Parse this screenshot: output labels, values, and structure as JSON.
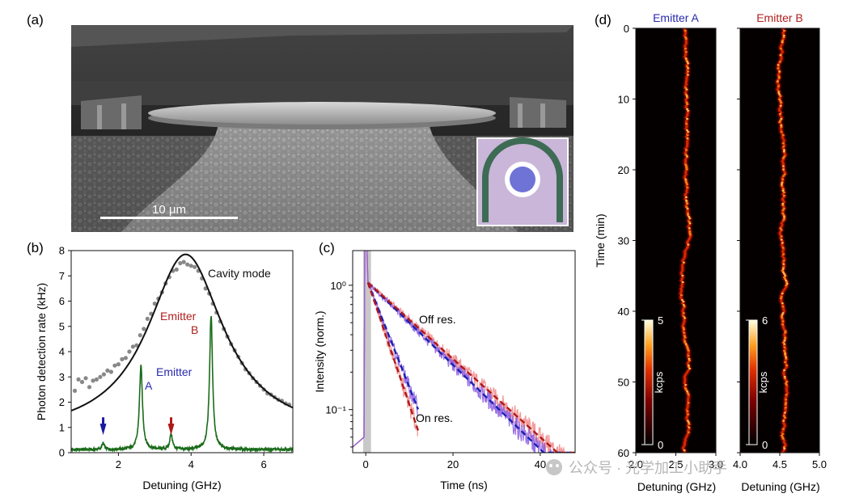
{
  "figure": {
    "panel_labels": [
      "(a)",
      "(b)",
      "(c)",
      "(d)"
    ],
    "watermark": "公众号 · 光学加工小助手"
  },
  "panel_a": {
    "scale_bar_label": "10 μm"
  },
  "chart_data": [
    {
      "panel": "(b)",
      "type": "line",
      "xlabel": "Detuning (GHz)",
      "ylabel": "Photon detection rate (kHz)",
      "xlim": [
        0.7,
        6.8
      ],
      "ylim": [
        0,
        8
      ],
      "xticks": [
        2,
        4,
        6
      ],
      "yticks": [
        0,
        1,
        2,
        3,
        4,
        5,
        6,
        7,
        8
      ],
      "annotations": {
        "cavity": "Cavity mode",
        "emitter_b_1": "Emitter",
        "emitter_b_2": "B",
        "emitter_a_1": "Emitter",
        "emitter_a_2": "A"
      },
      "cavity_fit": {
        "center": 3.85,
        "amplitude": 7.2,
        "fwhm": 2.55,
        "offset": 0.65
      },
      "cavity_scatter": [
        [
          0.8,
          2.45
        ],
        [
          0.9,
          2.9
        ],
        [
          1.0,
          2.8
        ],
        [
          1.1,
          2.95
        ],
        [
          1.2,
          2.6
        ],
        [
          1.3,
          2.85
        ],
        [
          1.4,
          2.9
        ],
        [
          1.5,
          3.0
        ],
        [
          1.6,
          3.1
        ],
        [
          1.7,
          3.25
        ],
        [
          1.8,
          3.2
        ],
        [
          1.9,
          3.45
        ],
        [
          2.0,
          3.5
        ],
        [
          2.1,
          3.7
        ],
        [
          2.2,
          3.75
        ],
        [
          2.3,
          4.0
        ],
        [
          2.4,
          4.2
        ],
        [
          2.5,
          4.25
        ],
        [
          2.6,
          4.65
        ],
        [
          2.7,
          4.9
        ],
        [
          2.8,
          5.3
        ],
        [
          2.9,
          5.5
        ],
        [
          3.0,
          5.9
        ],
        [
          3.1,
          6.1
        ],
        [
          3.2,
          6.35
        ],
        [
          3.3,
          6.7
        ],
        [
          3.4,
          6.95
        ],
        [
          3.5,
          7.2
        ],
        [
          3.6,
          7.25
        ],
        [
          3.7,
          7.5
        ],
        [
          3.8,
          7.55
        ],
        [
          3.9,
          7.45
        ],
        [
          4.0,
          7.4
        ],
        [
          4.1,
          7.35
        ],
        [
          4.2,
          7.2
        ],
        [
          4.3,
          6.9
        ],
        [
          4.4,
          6.5
        ],
        [
          4.5,
          6.3
        ],
        [
          4.6,
          5.9
        ],
        [
          4.7,
          5.55
        ],
        [
          4.8,
          5.2
        ],
        [
          4.9,
          4.9
        ],
        [
          5.0,
          4.6
        ],
        [
          5.1,
          4.3
        ],
        [
          5.2,
          4.05
        ],
        [
          5.3,
          3.8
        ],
        [
          5.4,
          3.55
        ],
        [
          5.5,
          3.3
        ],
        [
          5.6,
          3.15
        ],
        [
          5.7,
          2.95
        ],
        [
          5.8,
          2.8
        ],
        [
          5.9,
          2.65
        ],
        [
          6.0,
          2.5
        ],
        [
          6.1,
          2.35
        ],
        [
          6.2,
          2.3
        ],
        [
          6.3,
          2.2
        ],
        [
          6.4,
          2.1
        ],
        [
          6.5,
          2.05
        ],
        [
          6.6,
          1.95
        ],
        [
          6.7,
          1.9
        ]
      ],
      "emitter_spectrum": {
        "baseline": 0.12,
        "peaks": [
          {
            "center": 1.58,
            "height": 0.25,
            "width": 0.04
          },
          {
            "center": 2.62,
            "height": 3.3,
            "width": 0.05
          },
          {
            "center": 3.45,
            "height": 0.6,
            "width": 0.045
          },
          {
            "center": 4.55,
            "height": 5.3,
            "width": 0.05
          }
        ]
      },
      "arrows": [
        {
          "x": 1.58,
          "color": "#1a1aa0"
        },
        {
          "x": 3.45,
          "color": "#b01818"
        }
      ],
      "colors": {
        "scatter": "#888888",
        "fit": "#111111",
        "spectrum": "#1a6b1a",
        "emitter_a": "#2a2ab0",
        "emitter_b": "#b02020"
      }
    },
    {
      "panel": "(c)",
      "type": "line",
      "xlabel": "Time (ns)",
      "ylabel": "Intensity (norm.)",
      "yscale": "log",
      "xlim": [
        -3,
        48
      ],
      "ylim": [
        0.045,
        1.9
      ],
      "xticks": [
        0,
        20,
        40
      ],
      "ytick_labels": [
        "10⁰",
        "10⁻¹"
      ],
      "ytick_values": [
        1,
        0.1
      ],
      "annotations": {
        "off_res": "Off res.",
        "on_res": "On res."
      },
      "series": [
        {
          "label": "Off res.",
          "tau_purple": 12.8,
          "tau_red": 13.8,
          "t_end": 48
        },
        {
          "label": "On res.",
          "tau_purple": 4.9,
          "tau_red": 4.2,
          "t_end": 12
        }
      ],
      "colors": {
        "purple_data": "#8a5ae0",
        "red_data": "#f08888",
        "blue_fit": "#1a22b0",
        "red_fit": "#b01818",
        "grey_band": "#b0b0b0"
      }
    },
    {
      "panel": "(d)",
      "type": "heatmap",
      "ylabel": "Time (min)",
      "ylim": [
        60,
        0
      ],
      "yticks": [
        0,
        10,
        20,
        30,
        40,
        50,
        60
      ],
      "maps": [
        {
          "title": "Emitter A",
          "xlabel": "Detuning (GHz)",
          "xlim": [
            2.0,
            3.0
          ],
          "xtick_labels": [
            "2.0",
            "2.5",
            "3.0"
          ],
          "xtick_values": [
            2.0,
            2.5,
            3.0
          ],
          "colorbar_label": "kcps",
          "colorbar_range": [
            0,
            5
          ],
          "colorbar_ticks": [
            "0",
            "5"
          ],
          "line_center": 2.62,
          "title_color": "#2a2ab0"
        },
        {
          "title": "Emitter B",
          "xlabel": "Detuning (GHz)",
          "xlim": [
            4.0,
            5.0
          ],
          "xtick_labels": [
            "4.0",
            "4.5",
            "5.0"
          ],
          "xtick_values": [
            4.0,
            4.5,
            5.0
          ],
          "colorbar_label": "kcps",
          "colorbar_range": [
            0,
            6
          ],
          "colorbar_ticks": [
            "0",
            "6"
          ],
          "line_center": 4.55,
          "title_color": "#b02020"
        }
      ]
    }
  ]
}
